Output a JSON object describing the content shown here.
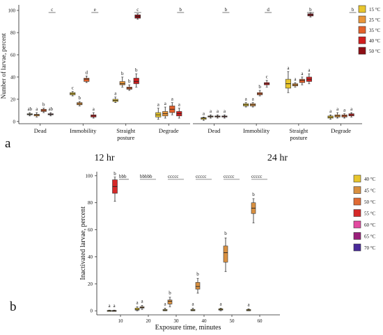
{
  "panel_a": {
    "label": "a",
    "ylabel": "Number of larvae, percent",
    "legend": [
      {
        "name": "15 °C",
        "color": "#e8c62d"
      },
      {
        "name": "25 °C",
        "color": "#e9963a"
      },
      {
        "name": "35 °C",
        "color": "#e3612b"
      },
      {
        "name": "40 °C",
        "color": "#d11f1f"
      },
      {
        "name": "50 °C",
        "color": "#8e0f16"
      }
    ]
  },
  "panel_b": {
    "label": "b",
    "legend": [
      {
        "name": "40 °C",
        "color": "#e8c62d"
      },
      {
        "name": "45 °C",
        "color": "#d99040"
      },
      {
        "name": "50 °C",
        "color": "#e06a34"
      },
      {
        "name": "55 °C",
        "color": "#d62828"
      },
      {
        "name": "60 °C",
        "color": "#e34aa0"
      },
      {
        "name": "65 °C",
        "color": "#9a1f7a"
      },
      {
        "name": "70 °C",
        "color": "#4a2a9a"
      }
    ]
  },
  "chart_data": [
    {
      "type": "box",
      "panel": "a",
      "subtitle": "12 hr",
      "ylabel": "Number of larvae, percent",
      "ylim": [
        -2,
        105
      ],
      "yticks": [
        0,
        20,
        40,
        60,
        80,
        100
      ],
      "categories": [
        "Dead",
        "Immobility",
        "Straight posture",
        "Degrade"
      ],
      "category_lines": [
        [
          "Dead"
        ],
        [
          "Immobility"
        ],
        [
          "Straight",
          "posture"
        ],
        [
          "Degrade"
        ]
      ],
      "series_names": [
        "15 °C",
        "25 °C",
        "35 °C",
        "40 °C",
        "50 °C"
      ],
      "groups": [
        {
          "category": "Dead",
          "letters": [
            "ab",
            "a",
            "b",
            "ab"
          ],
          "boxes": [
            [
              5,
              6,
              6.5,
              7,
              8
            ],
            [
              4,
              5,
              6,
              6.5,
              8
            ],
            [
              8,
              9,
              10,
              11,
              12
            ],
            [
              5,
              6,
              6.5,
              7,
              8
            ]
          ],
          "top_letter": "c"
        },
        {
          "category": "Immobility",
          "letters": [
            "c",
            "b",
            "d",
            "a"
          ],
          "boxes": [
            [
              23,
              24,
              25,
              26,
              27
            ],
            [
              14,
              15,
              16,
              17,
              18
            ],
            [
              35,
              36,
              38,
              39,
              41
            ],
            [
              3,
              4,
              5,
              6,
              8
            ]
          ],
          "top_letter": "e"
        },
        {
          "category": "Straight posture",
          "letters": [
            "a",
            "b",
            "b",
            "b"
          ],
          "boxes": [
            [
              17,
              18,
              19,
              20,
              22
            ],
            [
              31,
              33,
              34,
              36,
              40
            ],
            [
              28,
              29,
              30,
              31,
              33
            ],
            [
              31,
              34,
              36,
              39,
              43
            ]
          ],
          "top_letter": "c",
          "extreme_box": [
            92,
            93,
            94.5,
            96,
            97
          ]
        },
        {
          "category": "Degrade",
          "letters": [
            "a",
            "a",
            "a",
            "a"
          ],
          "boxes": [
            [
              2,
              4,
              6,
              8,
              12
            ],
            [
              3,
              5,
              7,
              9,
              13
            ],
            [
              6,
              8,
              11,
              14,
              17
            ],
            [
              3,
              5,
              7,
              9,
              12
            ]
          ],
          "top_letter": "b"
        }
      ]
    },
    {
      "type": "box",
      "panel": "a",
      "subtitle": "24 hr",
      "ylim": [
        -2,
        105
      ],
      "categories": [
        "Dead",
        "Immobility",
        "Straight posture",
        "Degrade"
      ],
      "category_lines": [
        [
          "Dead"
        ],
        [
          "Immobility"
        ],
        [
          "Straight",
          "posture"
        ],
        [
          "Degrade"
        ]
      ],
      "series_names": [
        "15 °C",
        "25 °C",
        "35 °C",
        "40 °C",
        "50 °C"
      ],
      "groups": [
        {
          "category": "Dead",
          "letters": [
            "a",
            "a",
            "a",
            "a"
          ],
          "boxes": [
            [
              1,
              2,
              3,
              3.5,
              4
            ],
            [
              3,
              4,
              4.5,
              5,
              6
            ],
            [
              3,
              4,
              4.5,
              5,
              6
            ],
            [
              3,
              4,
              4.5,
              5,
              6
            ]
          ],
          "top_letter": "b"
        },
        {
          "category": "Immobility",
          "letters": [
            "a",
            "a",
            "b",
            "c"
          ],
          "boxes": [
            [
              13,
              14,
              15,
              16,
              17
            ],
            [
              13,
              14,
              15,
              16,
              17
            ],
            [
              23,
              24,
              25,
              26,
              28
            ],
            [
              31,
              33,
              34,
              35,
              37
            ]
          ],
          "top_letter": "d"
        },
        {
          "category": "Straight posture",
          "letters": [
            "a",
            "a",
            "a",
            "a"
          ],
          "boxes": [
            [
              26,
              30,
              34,
              38,
              45
            ],
            [
              31,
              32,
              33,
              34,
              35
            ],
            [
              33,
              35,
              37,
              38,
              40
            ],
            [
              34,
              36,
              38,
              40,
              43
            ]
          ],
          "top_letter": "b",
          "extreme_box": [
            94,
            95,
            96,
            97,
            98
          ]
        },
        {
          "category": "Degrade",
          "letters": [
            "a",
            "a",
            "a",
            "a"
          ],
          "boxes": [
            [
              2,
              3,
              4,
              5,
              6
            ],
            [
              3,
              4,
              5,
              6,
              8
            ],
            [
              3,
              4,
              5,
              6,
              7
            ],
            [
              4,
              5,
              6,
              7,
              8
            ]
          ],
          "top_letter": "b"
        }
      ]
    },
    {
      "type": "box",
      "panel": "b",
      "xlabel": "Exposure time, minutes",
      "ylabel": "Inactivated larvae, percent",
      "ylim": [
        -3,
        103
      ],
      "yticks": [
        0,
        20,
        40,
        60,
        80,
        100
      ],
      "x": [
        10,
        20,
        30,
        40,
        50,
        60
      ],
      "series_names": [
        "40 °C",
        "45 °C",
        "50 °C",
        "55 °C",
        "60 °C",
        "65 °C",
        "70 °C"
      ],
      "groups": [
        {
          "x": 10,
          "letters": [
            "a",
            "a"
          ],
          "boxes": [
            [
              0,
              0,
              0,
              0.3,
              0.5
            ],
            [
              0,
              0,
              0,
              0.3,
              0.5
            ]
          ],
          "top": {
            "letter": "b",
            "series": "55 °C",
            "box": [
              81,
              87,
              92,
              97,
              99
            ]
          },
          "top_letters": "bbb"
        },
        {
          "x": 20,
          "letters": [
            "a",
            "a"
          ],
          "boxes": [
            [
              0,
              0.5,
              1,
              2,
              3
            ],
            [
              1,
              2,
              2.5,
              3,
              4
            ]
          ],
          "top_letters": "bbbbb"
        },
        {
          "x": 30,
          "letters": [
            "a",
            "b"
          ],
          "boxes": [
            [
              0,
              0,
              0.5,
              1,
              2
            ],
            [
              3,
              5,
              7,
              8,
              10
            ]
          ],
          "top_letters": "ccccc"
        },
        {
          "x": 40,
          "letters": [
            "a",
            "b"
          ],
          "boxes": [
            [
              0,
              0,
              0.5,
              1,
              2
            ],
            [
              13,
              16,
              18,
              21,
              24
            ]
          ],
          "top_letters": "ccccc"
        },
        {
          "x": 50,
          "letters": [
            "a",
            "b"
          ],
          "boxes": [
            [
              0,
              0.5,
              1,
              1.5,
              2
            ],
            [
              29,
              36,
              43,
              48,
              54
            ]
          ],
          "top_letters": "ccccc"
        },
        {
          "x": 60,
          "letters": [
            "a",
            "b"
          ],
          "boxes": [
            [
              0,
              0,
              0.5,
              1,
              1.5
            ],
            [
              65,
              72,
              76,
              80,
              83
            ]
          ],
          "top_letters": "ccccc"
        }
      ]
    }
  ]
}
